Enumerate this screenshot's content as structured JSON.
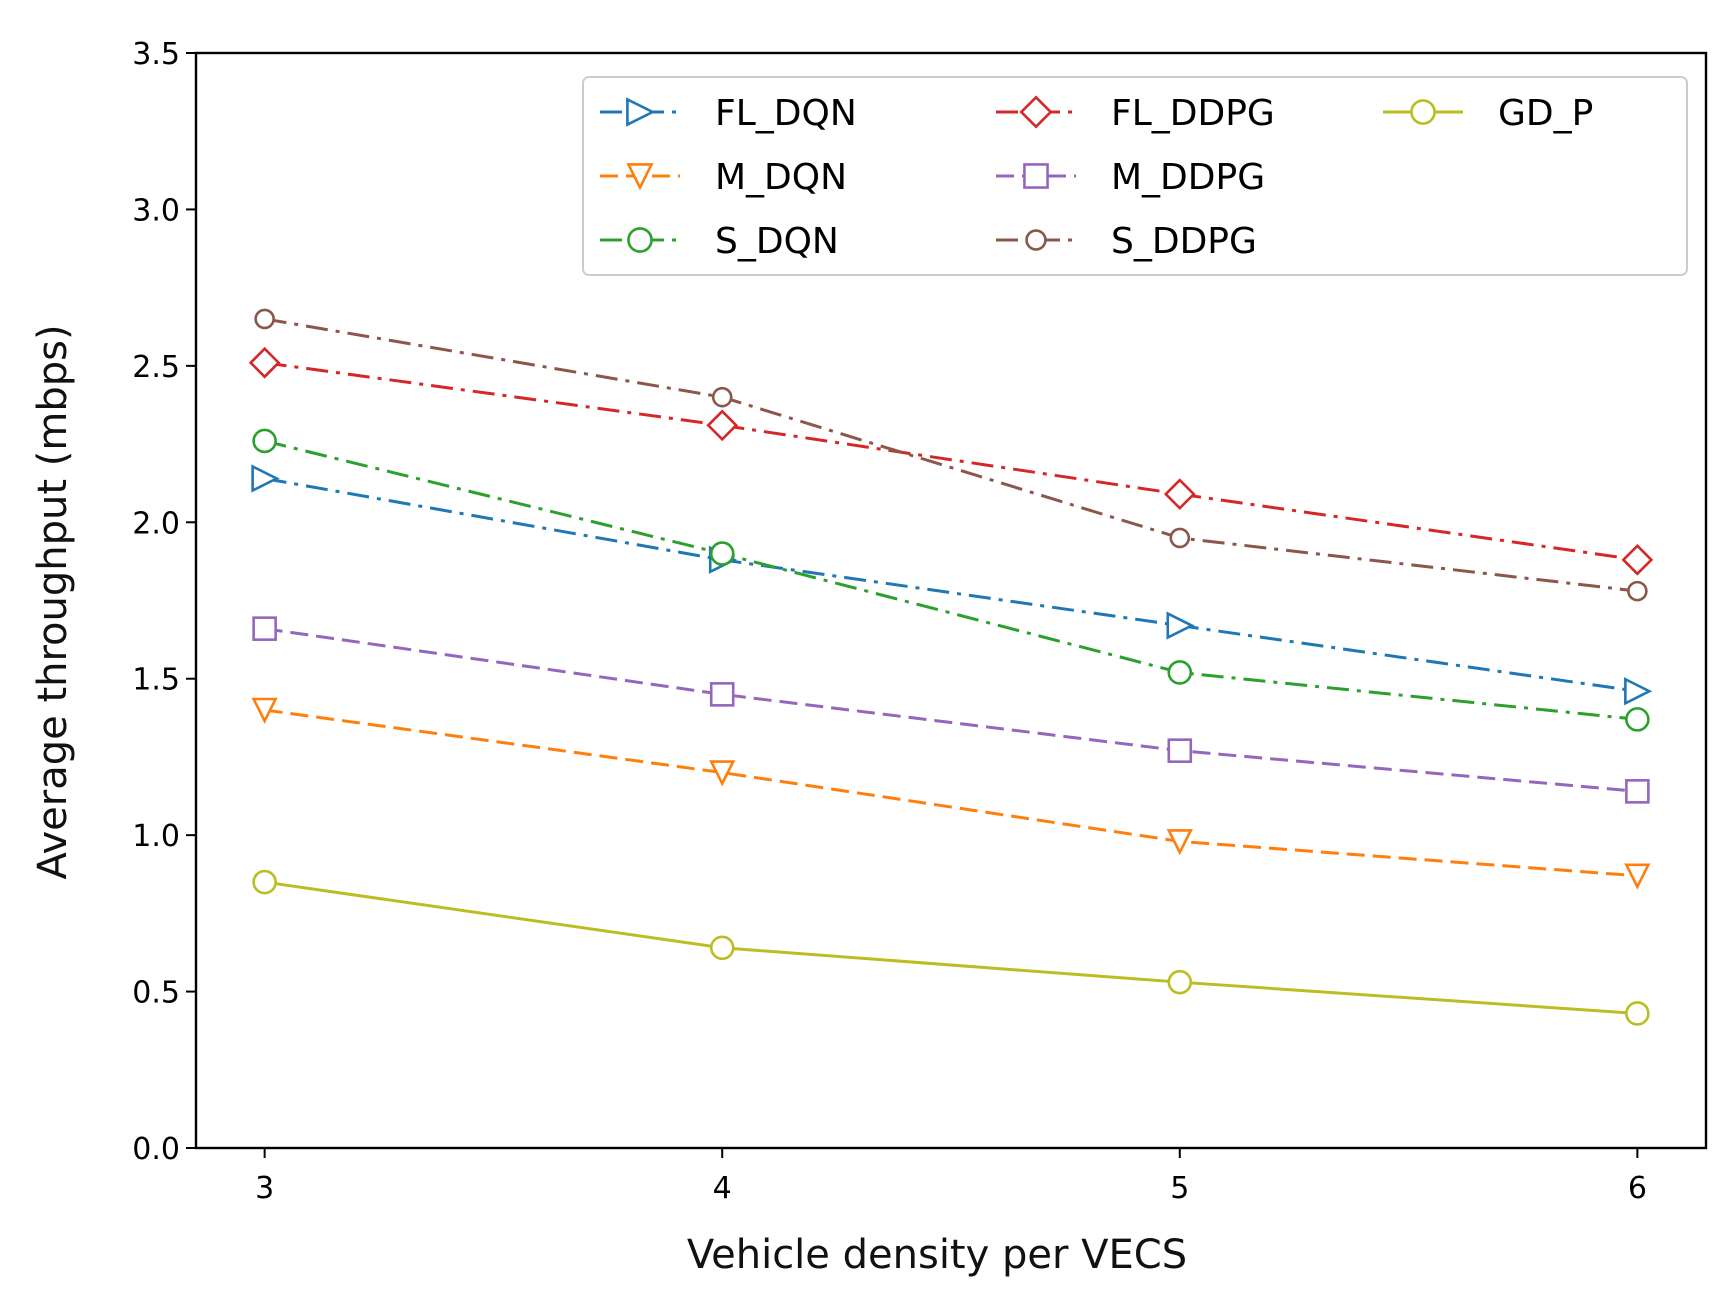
{
  "chart_data": {
    "type": "line",
    "title": "",
    "xlabel": "Vehicle density per VECS",
    "ylabel": "Average throughput (mbps)",
    "x": [
      3,
      4,
      5,
      6
    ],
    "xticks": [
      "3",
      "4",
      "5",
      "6"
    ],
    "yticks": [
      "0.0",
      "0.5",
      "1.0",
      "1.5",
      "2.0",
      "2.5",
      "3.0",
      "3.5"
    ],
    "ylim": [
      0,
      3.5
    ],
    "grid": false,
    "legend_position": "top-right",
    "series": [
      {
        "name": "FL_DQN",
        "color": "#1f77b4",
        "linestyle": "dashdot",
        "marker": "triangle-right",
        "values": [
          2.14,
          1.88,
          1.67,
          1.46
        ]
      },
      {
        "name": "M_DQN",
        "color": "#ff7f0e",
        "linestyle": "dashed",
        "marker": "triangle-down",
        "values": [
          1.4,
          1.2,
          0.98,
          0.87
        ]
      },
      {
        "name": "S_DQN",
        "color": "#2ca02c",
        "linestyle": "dashdot",
        "marker": "circle",
        "values": [
          2.26,
          1.9,
          1.52,
          1.37
        ]
      },
      {
        "name": "FL_DDPG",
        "color": "#d62728",
        "linestyle": "dashdot",
        "marker": "diamond",
        "values": [
          2.51,
          2.31,
          2.09,
          1.88
        ]
      },
      {
        "name": "M_DDPG",
        "color": "#9467bd",
        "linestyle": "dashed",
        "marker": "square",
        "values": [
          1.66,
          1.45,
          1.27,
          1.14
        ]
      },
      {
        "name": "S_DDPG",
        "color": "#8c564b",
        "linestyle": "dashdot",
        "marker": "small-circle",
        "values": [
          2.65,
          2.4,
          1.95,
          1.78
        ]
      },
      {
        "name": "GD_P",
        "color": "#bcbd22",
        "linestyle": "solid",
        "marker": "circle",
        "values": [
          0.85,
          0.64,
          0.53,
          0.43
        ]
      }
    ]
  }
}
